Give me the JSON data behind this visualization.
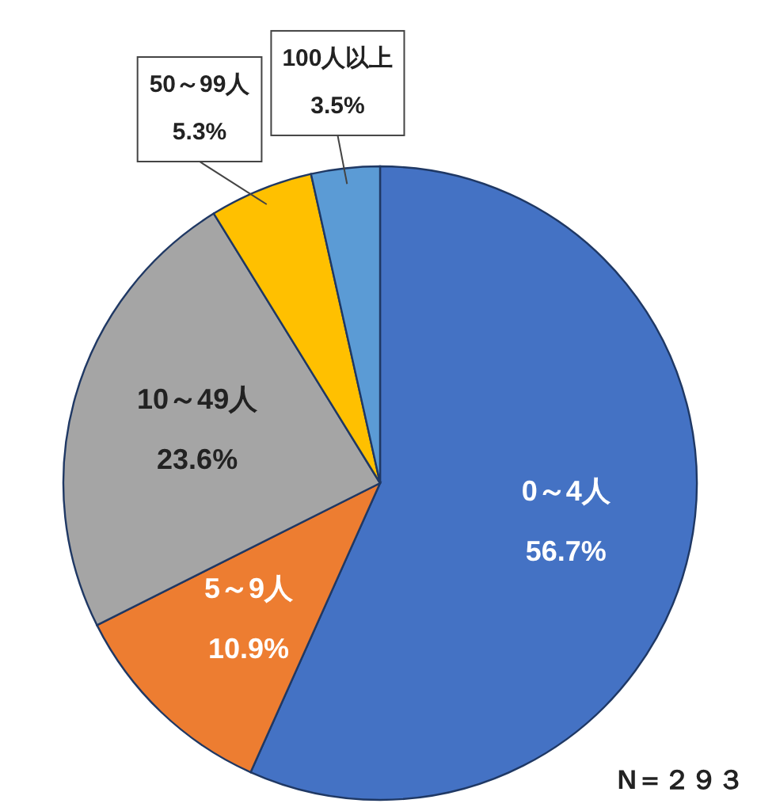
{
  "chart_data": {
    "type": "pie",
    "categories": [
      "0～4人",
      "5～9人",
      "10～49人",
      "50～99人",
      "100人以上"
    ],
    "values": [
      56.7,
      10.9,
      23.6,
      5.3,
      3.5
    ],
    "colors": [
      "#4472c4",
      "#ed7d31",
      "#a5a5a5",
      "#ffc000",
      "#5b9bd5"
    ],
    "value_labels": [
      "56.7%",
      "10.9%",
      "23.6%",
      "5.3%",
      "3.5%"
    ],
    "annotations": [
      "N＝２９３"
    ]
  }
}
